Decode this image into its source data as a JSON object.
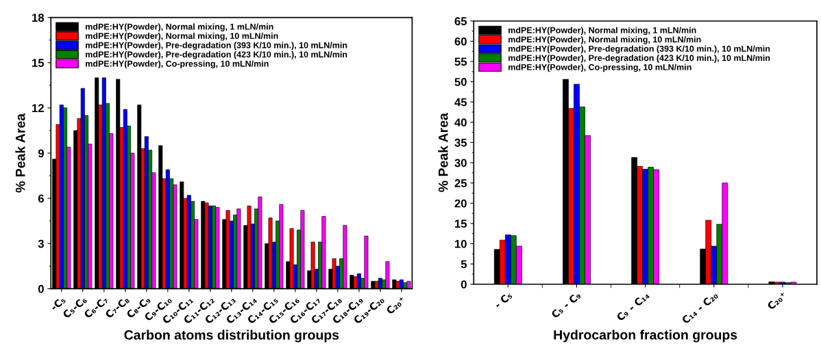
{
  "chart_data": [
    {
      "type": "bar",
      "xlabel": "Carbon atoms distribution groups",
      "ylabel": "% Peak Area",
      "categories": [
        "-C₅",
        "C₅-C₆",
        "C₆-C₇",
        "C₇-C₈",
        "C₈-C₉",
        "C₉-C₁₀",
        "C₁₀-C₁₁",
        "C₁₁-C₁₂",
        "C₁₂-C₁₃",
        "C₁₃-C₁₄",
        "C₁₄-C₁₅",
        "C₁₅-C₁₆",
        "C₁₆-C₁₇",
        "C₁₇-C₁₈",
        "C₁₈-C₁₉",
        "C₁₉-C₂₀",
        "C₂₀⁺"
      ],
      "series": [
        {
          "name": "mdPE:HY(Powder), Normal mixing, 1 mLN/min",
          "color": "#000000",
          "values": [
            8.6,
            10.5,
            14.0,
            13.9,
            12.2,
            9.5,
            7.1,
            5.8,
            4.6,
            4.2,
            3.0,
            1.8,
            1.2,
            1.3,
            0.9,
            0.5,
            0.6
          ]
        },
        {
          "name": "mdPE:HY(Powder), Normal mixing, 10 mLN/min",
          "color": "#ff0000",
          "values": [
            10.9,
            11.3,
            12.2,
            10.7,
            9.3,
            7.3,
            6.0,
            5.7,
            5.2,
            5.5,
            4.7,
            4.0,
            3.1,
            2.0,
            0.8,
            0.5,
            0.5
          ]
        },
        {
          "name": "mdPE:HY(Powder), Pre-degradation (393 K/10 min.), 10 mLN/min",
          "color": "#0000ff",
          "values": [
            12.2,
            13.3,
            14.0,
            11.9,
            10.1,
            7.9,
            6.2,
            5.5,
            4.5,
            4.3,
            3.1,
            1.6,
            1.3,
            1.5,
            1.0,
            0.7,
            0.6
          ]
        },
        {
          "name": "mdPE:HY(Powder), Pre-degradation (423 K/10 min.), 10 mLN/min",
          "color": "#008000",
          "values": [
            12.0,
            11.5,
            12.3,
            10.8,
            9.2,
            7.3,
            5.8,
            5.5,
            4.9,
            5.3,
            4.5,
            3.9,
            3.1,
            2.0,
            0.7,
            0.6,
            0.4
          ]
        },
        {
          "name": "mdPE:HY(Powder), Co-pressing, 10 mLN/min",
          "color": "#ff00ff",
          "values": [
            9.4,
            9.6,
            10.3,
            9.0,
            7.7,
            6.9,
            4.6,
            5.4,
            5.3,
            6.1,
            5.6,
            5.2,
            4.8,
            4.2,
            3.5,
            1.8,
            0.5
          ]
        }
      ],
      "ylim": [
        0,
        18
      ],
      "yticks": [
        0,
        3,
        6,
        9,
        12,
        15,
        18
      ],
      "grid": false,
      "legend": "top left"
    },
    {
      "type": "bar",
      "xlabel": "Hydrocarbon fraction groups",
      "ylabel": "% Peak Area",
      "categories": [
        "- C₅",
        "C₅ - C₉",
        "C₉ - C₁₄",
        "C₁₄ - C₂₀",
        "C₂₀⁺"
      ],
      "series": [
        {
          "name": "mdPE:HY(Powder), Normal mixing, 1 mLN/min",
          "color": "#000000",
          "values": [
            8.6,
            50.6,
            31.3,
            8.7,
            0.6
          ]
        },
        {
          "name": "mdPE:HY(Powder), Normal mixing, 10 mLN/min",
          "color": "#ff0000",
          "values": [
            10.9,
            43.4,
            29.1,
            15.8,
            0.5
          ]
        },
        {
          "name": "mdPE:HY(Powder), Pre-degradation (393 K/10 min.), 10 mLN/min",
          "color": "#0000ff",
          "values": [
            12.2,
            49.4,
            28.4,
            9.4,
            0.5
          ]
        },
        {
          "name": "mdPE:HY(Powder), Pre-degradation (423 K/10 min.), 10 mLN/min",
          "color": "#008000",
          "values": [
            12.0,
            43.8,
            28.9,
            14.8,
            0.4
          ]
        },
        {
          "name": "mdPE:HY(Powder), Co-pressing, 10 mLN/min",
          "color": "#ff00ff",
          "values": [
            9.4,
            36.7,
            28.3,
            25.0,
            0.5
          ]
        }
      ],
      "ylim": [
        0,
        65
      ],
      "yticks": [
        0,
        5,
        10,
        15,
        20,
        25,
        30,
        35,
        40,
        45,
        50,
        55,
        60,
        65
      ],
      "grid": false,
      "legend": "top left"
    }
  ]
}
